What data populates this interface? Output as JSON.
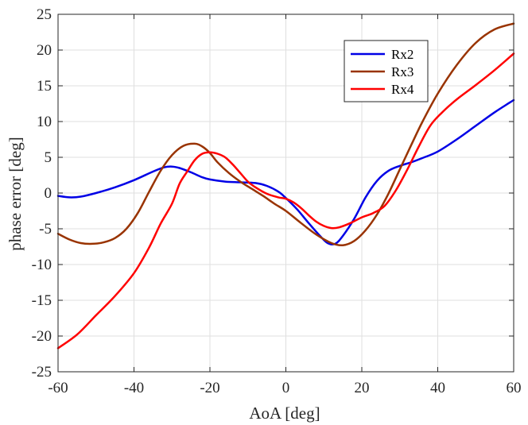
{
  "chart_data": {
    "type": "line",
    "title": "",
    "xlabel": "AoA [deg]",
    "ylabel": "phase error [deg]",
    "xlim": [
      -60,
      60
    ],
    "ylim": [
      -25,
      25
    ],
    "xticks": [
      -60,
      -40,
      -20,
      0,
      20,
      40,
      60
    ],
    "yticks": [
      -25,
      -20,
      -15,
      -10,
      -5,
      0,
      5,
      10,
      15,
      20,
      25
    ],
    "grid": true,
    "legend_position": "top-right",
    "series": [
      {
        "name": "Rx2",
        "color": "#0000e6",
        "x": [
          -60,
          -57,
          -54,
          -50,
          -45,
          -40,
          -35,
          -32,
          -30,
          -28,
          -25,
          -22,
          -20,
          -16,
          -12,
          -8,
          -5,
          -2,
          0,
          3,
          6,
          9,
          11,
          13,
          15,
          18,
          21,
          24,
          27,
          30,
          33,
          36,
          40,
          45,
          50,
          55,
          60
        ],
        "values": [
          -0.4,
          -0.6,
          -0.5,
          0.0,
          0.8,
          1.8,
          3.0,
          3.6,
          3.7,
          3.5,
          2.9,
          2.2,
          1.9,
          1.6,
          1.5,
          1.4,
          1.0,
          0.2,
          -0.7,
          -2.3,
          -4.2,
          -6.0,
          -7.0,
          -7.1,
          -6.0,
          -3.6,
          -0.6,
          1.7,
          3.1,
          3.8,
          4.3,
          4.9,
          5.8,
          7.5,
          9.4,
          11.3,
          13.0
        ]
      },
      {
        "name": "Rx3",
        "color": "#993300",
        "x": [
          -60,
          -57,
          -54,
          -51,
          -48,
          -45,
          -42,
          -39,
          -36,
          -33,
          -30,
          -27,
          -24,
          -22,
          -20,
          -18,
          -15,
          -12,
          -9,
          -6,
          -3,
          0,
          4,
          8,
          12,
          15,
          18,
          21,
          24,
          27,
          30,
          33,
          36,
          40,
          45,
          50,
          55,
          60
        ],
        "values": [
          -5.7,
          -6.5,
          -7.0,
          -7.1,
          -6.9,
          -6.3,
          -5.0,
          -2.8,
          0.2,
          3.1,
          5.3,
          6.6,
          6.9,
          6.5,
          5.6,
          4.3,
          2.8,
          1.6,
          0.6,
          -0.4,
          -1.5,
          -2.5,
          -4.2,
          -5.8,
          -7.0,
          -7.3,
          -6.7,
          -5.2,
          -3.0,
          -0.1,
          3.3,
          6.7,
          10.0,
          13.9,
          17.9,
          21.0,
          22.9,
          23.7
        ]
      },
      {
        "name": "Rx4",
        "color": "#ff0000",
        "x": [
          -60,
          -55,
          -50,
          -45,
          -40,
          -36,
          -33,
          -30,
          -28,
          -26,
          -24,
          -22,
          -20,
          -18,
          -16,
          -14,
          -12,
          -10,
          -8,
          -5,
          -2,
          0,
          2,
          4,
          6,
          8,
          10,
          12,
          14,
          17,
          20,
          23,
          26,
          29,
          32,
          35,
          38,
          41,
          45,
          50,
          55,
          60
        ],
        "values": [
          -21.7,
          -19.8,
          -17.1,
          -14.4,
          -11.2,
          -7.6,
          -4.3,
          -1.5,
          1.3,
          3.0,
          4.6,
          5.5,
          5.7,
          5.5,
          5.0,
          4.0,
          2.8,
          1.6,
          0.8,
          -0.1,
          -0.6,
          -0.8,
          -1.3,
          -2.1,
          -3.1,
          -4.0,
          -4.6,
          -4.9,
          -4.8,
          -4.2,
          -3.4,
          -2.8,
          -1.8,
          0.4,
          3.3,
          6.5,
          9.4,
          11.2,
          13.1,
          15.1,
          17.2,
          19.5
        ]
      }
    ]
  }
}
